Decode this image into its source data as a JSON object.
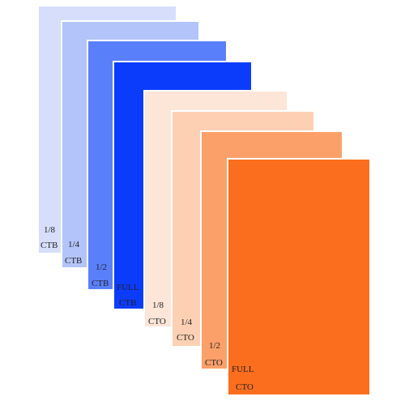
{
  "swatches": [
    {
      "amount": "1/8",
      "kind": "CTB"
    },
    {
      "amount": "1/4",
      "kind": "CTB"
    },
    {
      "amount": "1/2",
      "kind": "CTB"
    },
    {
      "amount": "FULL",
      "kind": "CTB"
    },
    {
      "amount": "1/8",
      "kind": "CTO"
    },
    {
      "amount": "1/4",
      "kind": "CTO"
    },
    {
      "amount": "1/2",
      "kind": "CTO"
    },
    {
      "amount": "FULL",
      "kind": "CTO"
    }
  ]
}
